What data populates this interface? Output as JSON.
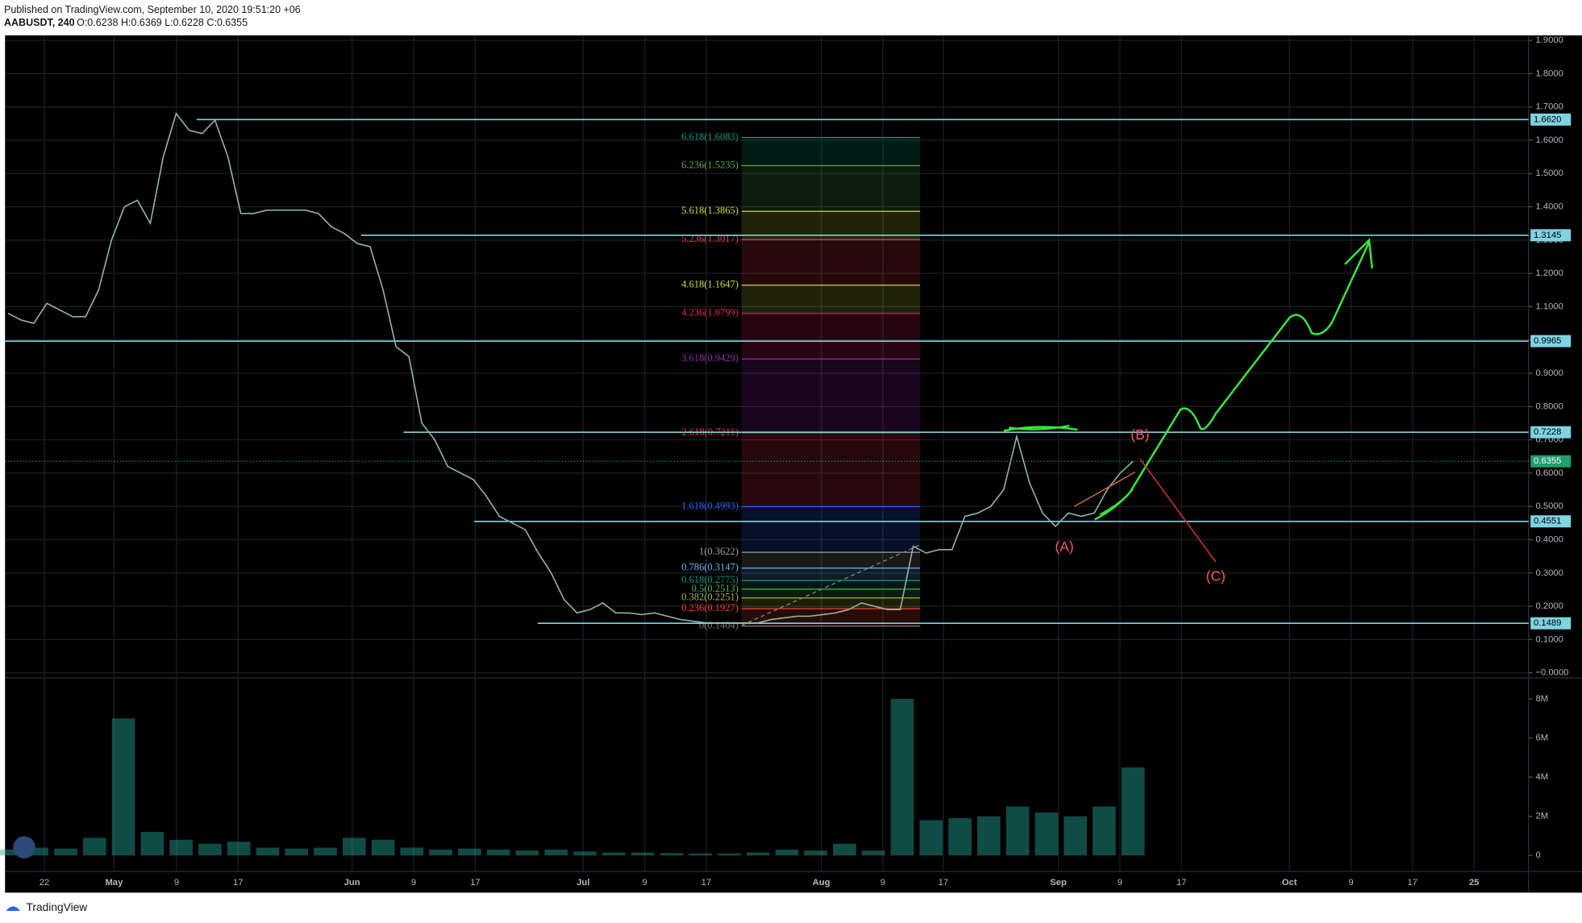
{
  "header": {
    "published": "Published on TradingView.com, September 10, 2020 19:51:20 +06",
    "symbol": "AABUSDT, 240",
    "ohlc": "O:0.6238 H:0.6369 L:0.6228 C:0.6355"
  },
  "footer": {
    "brand": "TradingView"
  },
  "chart_data": {
    "type": "line",
    "color": "#8fb3a0",
    "values": [
      1.08,
      1.06,
      1.05,
      1.11,
      1.09,
      1.07,
      1.07,
      1.15,
      1.3,
      1.4,
      1.42,
      1.35,
      1.55,
      1.68,
      1.63,
      1.62,
      1.66,
      1.55,
      1.38,
      1.38,
      1.39,
      1.39,
      1.39,
      1.39,
      1.38,
      1.34,
      1.32,
      1.29,
      1.28,
      1.15,
      0.98,
      0.95,
      0.75,
      0.7,
      0.62,
      0.6,
      0.58,
      0.53,
      0.47,
      0.45,
      0.43,
      0.36,
      0.3,
      0.22,
      0.18,
      0.19,
      0.21,
      0.18,
      0.18,
      0.175,
      0.18,
      0.17,
      0.16,
      0.155,
      0.15,
      0.15,
      0.15,
      0.15,
      0.15,
      0.16,
      0.165,
      0.17,
      0.17,
      0.175,
      0.18,
      0.19,
      0.21,
      0.2,
      0.19,
      0.19,
      0.38,
      0.36,
      0.37,
      0.37,
      0.47,
      0.48,
      0.5,
      0.55,
      0.71,
      0.57,
      0.48,
      0.44,
      0.48,
      0.47,
      0.48,
      0.55,
      0.6,
      0.6355
    ],
    "ylim": [
      -0.015,
      1.915
    ],
    "yticks": [
      {
        "value": 0,
        "label": "−0.0000"
      },
      {
        "value": 0.1,
        "label": "0.1000"
      },
      {
        "value": 0.2,
        "label": "0.2000"
      },
      {
        "value": 0.3,
        "label": "0.3000"
      },
      {
        "value": 0.4,
        "label": "0.4000"
      },
      {
        "value": 0.5,
        "label": "0.5000"
      },
      {
        "value": 0.6,
        "label": "0.6000"
      },
      {
        "value": 0.7,
        "label": "0.7000"
      },
      {
        "value": 0.8,
        "label": "0.8000"
      },
      {
        "value": 0.9,
        "label": "0.9000"
      },
      {
        "value": 1.0,
        "label": "1.0000"
      },
      {
        "value": 1.1,
        "label": "1.1000"
      },
      {
        "value": 1.2,
        "label": "1.2000"
      },
      {
        "value": 1.3,
        "label": "1.3000"
      },
      {
        "value": 1.4,
        "label": "1.4000"
      },
      {
        "value": 1.5,
        "label": "1.5000"
      },
      {
        "value": 1.6,
        "label": "1.6000"
      },
      {
        "value": 1.7,
        "label": "1.7000"
      },
      {
        "value": 1.8,
        "label": "1.8000"
      },
      {
        "value": 1.9,
        "label": "1.9000"
      }
    ],
    "xticks": [
      "22",
      "May",
      "9",
      "17",
      "Jun",
      "9",
      "17",
      "Jul",
      "9",
      "17",
      "Aug",
      "9",
      "17",
      "Sep",
      "9",
      "17",
      "Oct",
      "9",
      "17",
      "25"
    ],
    "grid": true,
    "levels": [
      {
        "value": 1.662,
        "label": "1.6620"
      },
      {
        "value": 1.3145,
        "label": "1.3145"
      },
      {
        "value": 0.9965,
        "label": "0.9965"
      },
      {
        "value": 0.7228,
        "label": "0.7228"
      },
      {
        "value": 0.4551,
        "label": "0.4551"
      },
      {
        "value": 0.1489,
        "label": "0.1489"
      }
    ],
    "level_color": "#7fd3e3",
    "last_price": {
      "value": 0.6355,
      "label": "0.6355",
      "color": "#1f9e6e"
    },
    "fib": [
      {
        "value": 0.1404,
        "label": "0(0.1404)",
        "color": "#787b86"
      },
      {
        "value": 0.1927,
        "label": "0.236(0.1927)",
        "color": "#f44336"
      },
      {
        "value": 0.2251,
        "label": "0.382(0.2251)",
        "color": "#a5b83a"
      },
      {
        "value": 0.2513,
        "label": "0.5(0.2513)",
        "color": "#4caf50"
      },
      {
        "value": 0.2775,
        "label": "0.618(0.2775)",
        "color": "#089981"
      },
      {
        "value": 0.3147,
        "label": "0.786(0.3147)",
        "color": "#64b5f6"
      },
      {
        "value": 0.3622,
        "label": "1(0.3622)",
        "color": "#9e9e9e"
      },
      {
        "value": 0.4993,
        "label": "1.618(0.4993)",
        "color": "#2962ff"
      },
      {
        "value": 0.7211,
        "label": "2.618(0.7211)",
        "color": "#f23645"
      },
      {
        "value": 0.9429,
        "label": "3.618(0.9429)",
        "color": "#9c27b0"
      },
      {
        "value": 1.0799,
        "label": "4.236(1.0799)",
        "color": "#e91e63"
      },
      {
        "value": 1.1647,
        "label": "4.618(1.1647)",
        "color": "#cddc39"
      },
      {
        "value": 1.3017,
        "label": "5.236(1.3017)",
        "color": "#f23645"
      },
      {
        "value": 1.3865,
        "label": "5.618(1.3865)",
        "color": "#cddc39"
      },
      {
        "value": 1.5235,
        "label": "6.236(1.5235)",
        "color": "#4caf50"
      },
      {
        "value": 1.6083,
        "label": "6.618(1.6083)",
        "color": "#089981"
      }
    ],
    "annotations": [
      "(A)",
      "(B)",
      "(C)"
    ],
    "annotation_color": "#f05a5a",
    "volume": {
      "color": "#26a69a",
      "values": [
        300000,
        400000,
        350000,
        900000,
        7000000,
        1200000,
        800000,
        600000,
        700000,
        400000,
        350000,
        400000,
        900000,
        800000,
        400000,
        300000,
        350000,
        300000,
        250000,
        300000,
        200000,
        150000,
        150000,
        120000,
        100000,
        100000,
        150000,
        300000,
        250000,
        600000,
        250000,
        8000000,
        1800000,
        1900000,
        2000000,
        2500000,
        2200000,
        2000000,
        2500000,
        4500000
      ],
      "ylim": [
        -770000,
        8970000
      ],
      "yticks": [
        {
          "value": 0,
          "label": "0"
        },
        {
          "value": 2000000,
          "label": "2M"
        },
        {
          "value": 4000000,
          "label": "4M"
        },
        {
          "value": 6000000,
          "label": "6M"
        },
        {
          "value": 8000000,
          "label": "8M"
        }
      ]
    }
  }
}
